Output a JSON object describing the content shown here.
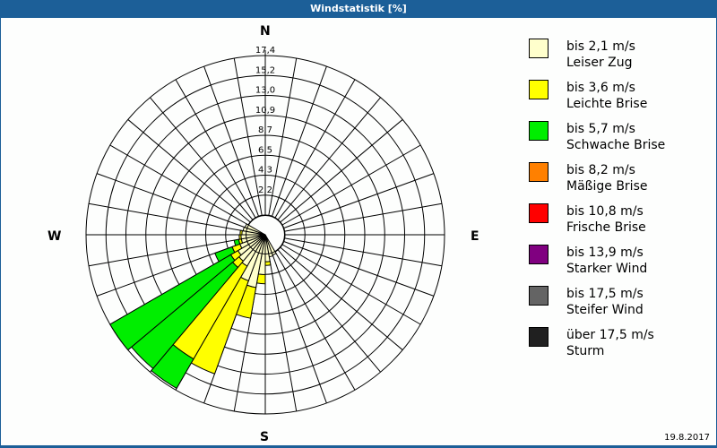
{
  "title": "Windstatistik [%]",
  "date": "19.8.2017",
  "compass": {
    "n": "N",
    "e": "E",
    "s": "S",
    "w": "W"
  },
  "legend": [
    {
      "speed": "bis 2,1 m/s",
      "name": "Leiser Zug",
      "color": "#ffffcc"
    },
    {
      "speed": "bis 3,6 m/s",
      "name": "Leichte Brise",
      "color": "#ffff00"
    },
    {
      "speed": "bis 5,7 m/s",
      "name": "Schwache Brise",
      "color": "#00ee00"
    },
    {
      "speed": "bis 8,2 m/s",
      "name": "Mäßige Brise",
      "color": "#ff8000"
    },
    {
      "speed": "bis 10,8 m/s",
      "name": "Frische Brise",
      "color": "#ff0000"
    },
    {
      "speed": "bis 13,9 m/s",
      "name": "Starker Wind",
      "color": "#800080"
    },
    {
      "speed": "bis 17,5 m/s",
      "name": "Steifer Wind",
      "color": "#646464"
    },
    {
      "speed": "über 17,5 m/s",
      "name": "Sturm",
      "color": "#202020"
    }
  ],
  "chart_data": {
    "type": "polar-stacked-bar (wind rose)",
    "title": "Windstatistik [%]",
    "ring_labels": [
      "2,2",
      "4,3",
      "6,5",
      "8,7",
      "10,9",
      "13,0",
      "15,2",
      "17,4"
    ],
    "rmax": 17.4,
    "sector_width_deg": 10,
    "series_names": [
      "bis 2,1 m/s",
      "bis 3,6 m/s",
      "bis 5,7 m/s",
      "bis 8,2 m/s",
      "bis 10,8 m/s",
      "bis 13,9 m/s",
      "bis 17,5 m/s",
      "über 17,5 m/s"
    ],
    "sectors": [
      {
        "dir": 165,
        "values": [
          0.3,
          0,
          0,
          0,
          0,
          0,
          0,
          0
        ]
      },
      {
        "dir": 175,
        "values": [
          0.8,
          0.4,
          0,
          0,
          0,
          0,
          0,
          0
        ]
      },
      {
        "dir": 185,
        "values": [
          2.2,
          1.0,
          0,
          0,
          0,
          0,
          0,
          0
        ]
      },
      {
        "dir": 195,
        "values": [
          3.7,
          3.4,
          0,
          0,
          0,
          0,
          0,
          0
        ]
      },
      {
        "dir": 205,
        "values": [
          3.2,
          10.8,
          0,
          0,
          0,
          0,
          0,
          0
        ]
      },
      {
        "dir": 215,
        "values": [
          1.8,
          11.7,
          3.7,
          0,
          0,
          0,
          0,
          0
        ]
      },
      {
        "dir": 225,
        "values": [
          1.6,
          0.9,
          14.4,
          0,
          0,
          0,
          0,
          0
        ]
      },
      {
        "dir": 235,
        "values": [
          1.3,
          0.9,
          15.2,
          0,
          0,
          0,
          0,
          0
        ]
      },
      {
        "dir": 245,
        "values": [
          0.8,
          0.9,
          2.0,
          0,
          0,
          0,
          0,
          0
        ]
      },
      {
        "dir": 255,
        "values": [
          0.5,
          0.3,
          0.5,
          0,
          0,
          0,
          0,
          0
        ]
      },
      {
        "dir": 265,
        "values": [
          0.5,
          0.2,
          0,
          0,
          0,
          0,
          0,
          0
        ]
      },
      {
        "dir": 275,
        "values": [
          0.4,
          0.2,
          0,
          0,
          0,
          0,
          0,
          0
        ]
      },
      {
        "dir": 285,
        "values": [
          0.3,
          0,
          0,
          0,
          0,
          0,
          0,
          0
        ]
      },
      {
        "dir": 295,
        "values": [
          0.2,
          0,
          0,
          0,
          0,
          0,
          0,
          0
        ]
      },
      {
        "dir": 155,
        "values": [
          0.2,
          0,
          0,
          0,
          0,
          0,
          0,
          0
        ]
      }
    ]
  }
}
